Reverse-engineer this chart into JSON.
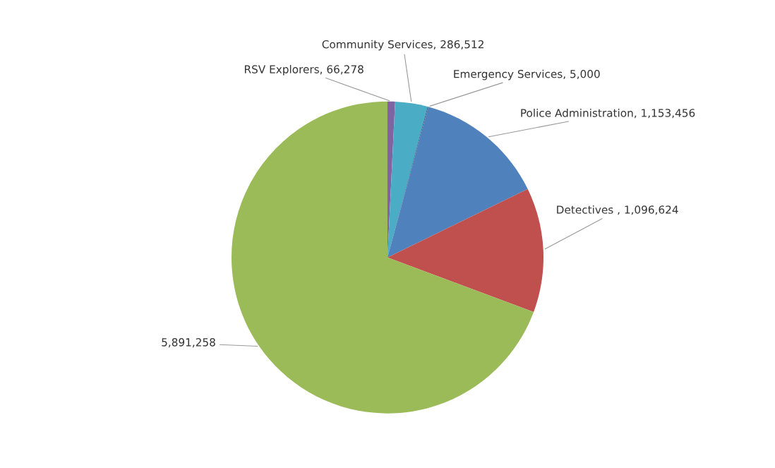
{
  "chart_data": {
    "type": "pie",
    "categories": [
      "RSV Explorers",
      "Community Services",
      "Emergency Services",
      "Police Administration",
      "Detectives ",
      null
    ],
    "value_labels": [
      "66,278",
      "286,512",
      "5,000",
      "1,153,456",
      "1,096,624",
      "5,891,258"
    ],
    "values": [
      66278,
      286512,
      5000,
      1153456,
      1096624,
      5891258
    ],
    "colors": [
      "#8064a2",
      "#4bacc6",
      "#1f3864",
      "#4f81bd",
      "#c0504d",
      "#9bbb59"
    ]
  }
}
